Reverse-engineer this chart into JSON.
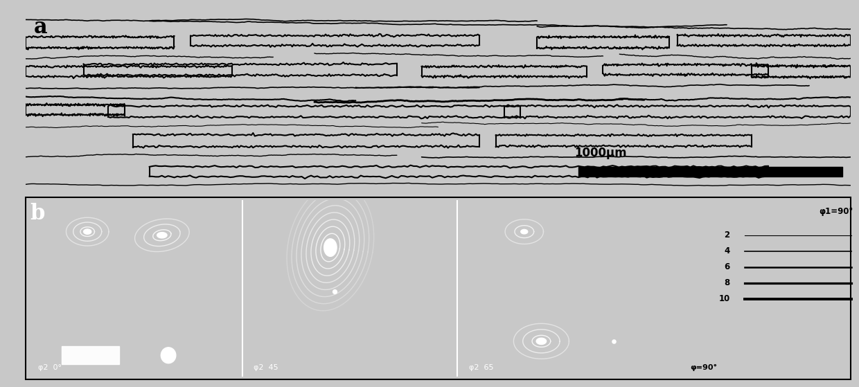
{
  "panel_a_bg": "#e8e8e8",
  "panel_b_bg": "#000000",
  "legend_bg": "#ffffff",
  "label_a": "a",
  "label_b": "b",
  "scale_bar_text": "1000μm",
  "phi2_labels": [
    "φ2  0°",
    "φ2  45",
    "φ2  65"
  ],
  "legend_phi1": "φ1=90°",
  "legend_phi": "φ=90°",
  "legend_levels": [
    "2",
    "4",
    "6",
    "8",
    "10"
  ],
  "panel_a_line_color": "#000000",
  "separator_color": "#ffffff",
  "font_size_label": 22,
  "font_size_small": 11,
  "fig_bg": "#c8c8c8"
}
